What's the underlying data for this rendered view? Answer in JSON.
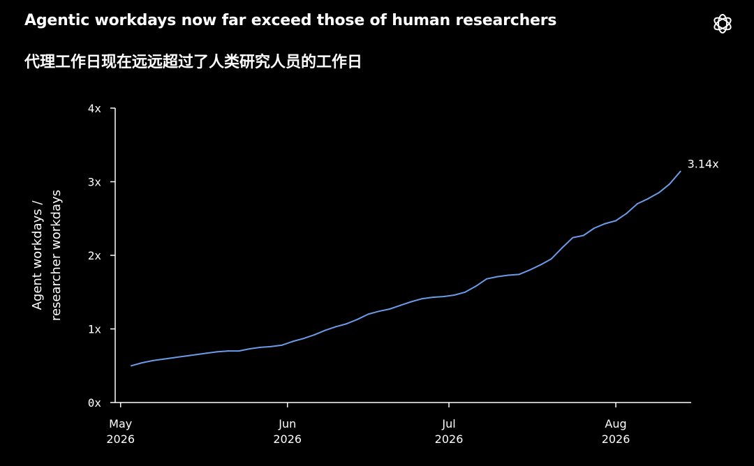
{
  "header": {
    "title": "Agentic workdays now far exceed those of human researchers",
    "subtitle": "代理工作日现在远远超过了人类研究人员的工作日",
    "logo_icon": "openai-logo-icon"
  },
  "colors": {
    "background": "#000000",
    "text": "#ffffff",
    "axis": "#ffffff",
    "line": "#6b9ce8"
  },
  "chart_data": {
    "type": "line",
    "title": "Agentic workdays now far exceed those of human researchers",
    "subtitle": "代理工作日现在远远超过了人类研究人员的工作日",
    "xlabel": "",
    "ylabel_lines": [
      "Agent workdays /",
      "researcher workdays"
    ],
    "ylim": [
      0,
      4
    ],
    "xlim": [
      "2026-04-30",
      "2026-08-15"
    ],
    "y_ticks": [
      {
        "value": 0,
        "label": "0x"
      },
      {
        "value": 1,
        "label": "1x"
      },
      {
        "value": 2,
        "label": "2x"
      },
      {
        "value": 3,
        "label": "3x"
      },
      {
        "value": 4,
        "label": "4x"
      }
    ],
    "x_ticks": [
      {
        "date": "2026-05-01",
        "month": "May",
        "year": "2026"
      },
      {
        "date": "2026-06-01",
        "month": "Jun",
        "year": "2026"
      },
      {
        "date": "2026-07-01",
        "month": "Jul",
        "year": "2026"
      },
      {
        "date": "2026-08-01",
        "month": "Aug",
        "year": "2026"
      }
    ],
    "grid": false,
    "end_label": "3.14x",
    "series": [
      {
        "color": "#6b9ce8",
        "x": [
          "2026-05-03",
          "2026-05-05",
          "2026-05-07",
          "2026-05-09",
          "2026-05-11",
          "2026-05-13",
          "2026-05-15",
          "2026-05-17",
          "2026-05-19",
          "2026-05-21",
          "2026-05-23",
          "2026-05-25",
          "2026-05-27",
          "2026-05-29",
          "2026-05-31",
          "2026-06-02",
          "2026-06-04",
          "2026-06-06",
          "2026-06-08",
          "2026-06-10",
          "2026-06-12",
          "2026-06-14",
          "2026-06-16",
          "2026-06-18",
          "2026-06-20",
          "2026-06-22",
          "2026-06-24",
          "2026-06-26",
          "2026-06-28",
          "2026-06-30",
          "2026-07-02",
          "2026-07-04",
          "2026-07-06",
          "2026-07-08",
          "2026-07-10",
          "2026-07-12",
          "2026-07-14",
          "2026-07-16",
          "2026-07-18",
          "2026-07-20",
          "2026-07-22",
          "2026-07-24",
          "2026-07-26",
          "2026-07-28",
          "2026-07-30",
          "2026-08-01",
          "2026-08-03",
          "2026-08-05",
          "2026-08-07",
          "2026-08-09",
          "2026-08-11",
          "2026-08-13"
        ],
        "y": [
          0.5,
          0.54,
          0.57,
          0.59,
          0.61,
          0.63,
          0.65,
          0.67,
          0.69,
          0.7,
          0.7,
          0.73,
          0.75,
          0.76,
          0.78,
          0.83,
          0.87,
          0.92,
          0.98,
          1.03,
          1.07,
          1.13,
          1.2,
          1.24,
          1.27,
          1.32,
          1.37,
          1.41,
          1.43,
          1.44,
          1.46,
          1.5,
          1.58,
          1.68,
          1.71,
          1.73,
          1.74,
          1.8,
          1.87,
          1.95,
          2.1,
          2.24,
          2.27,
          2.37,
          2.43,
          2.47,
          2.57,
          2.7,
          2.77,
          2.85,
          2.97,
          3.14
        ]
      }
    ]
  }
}
